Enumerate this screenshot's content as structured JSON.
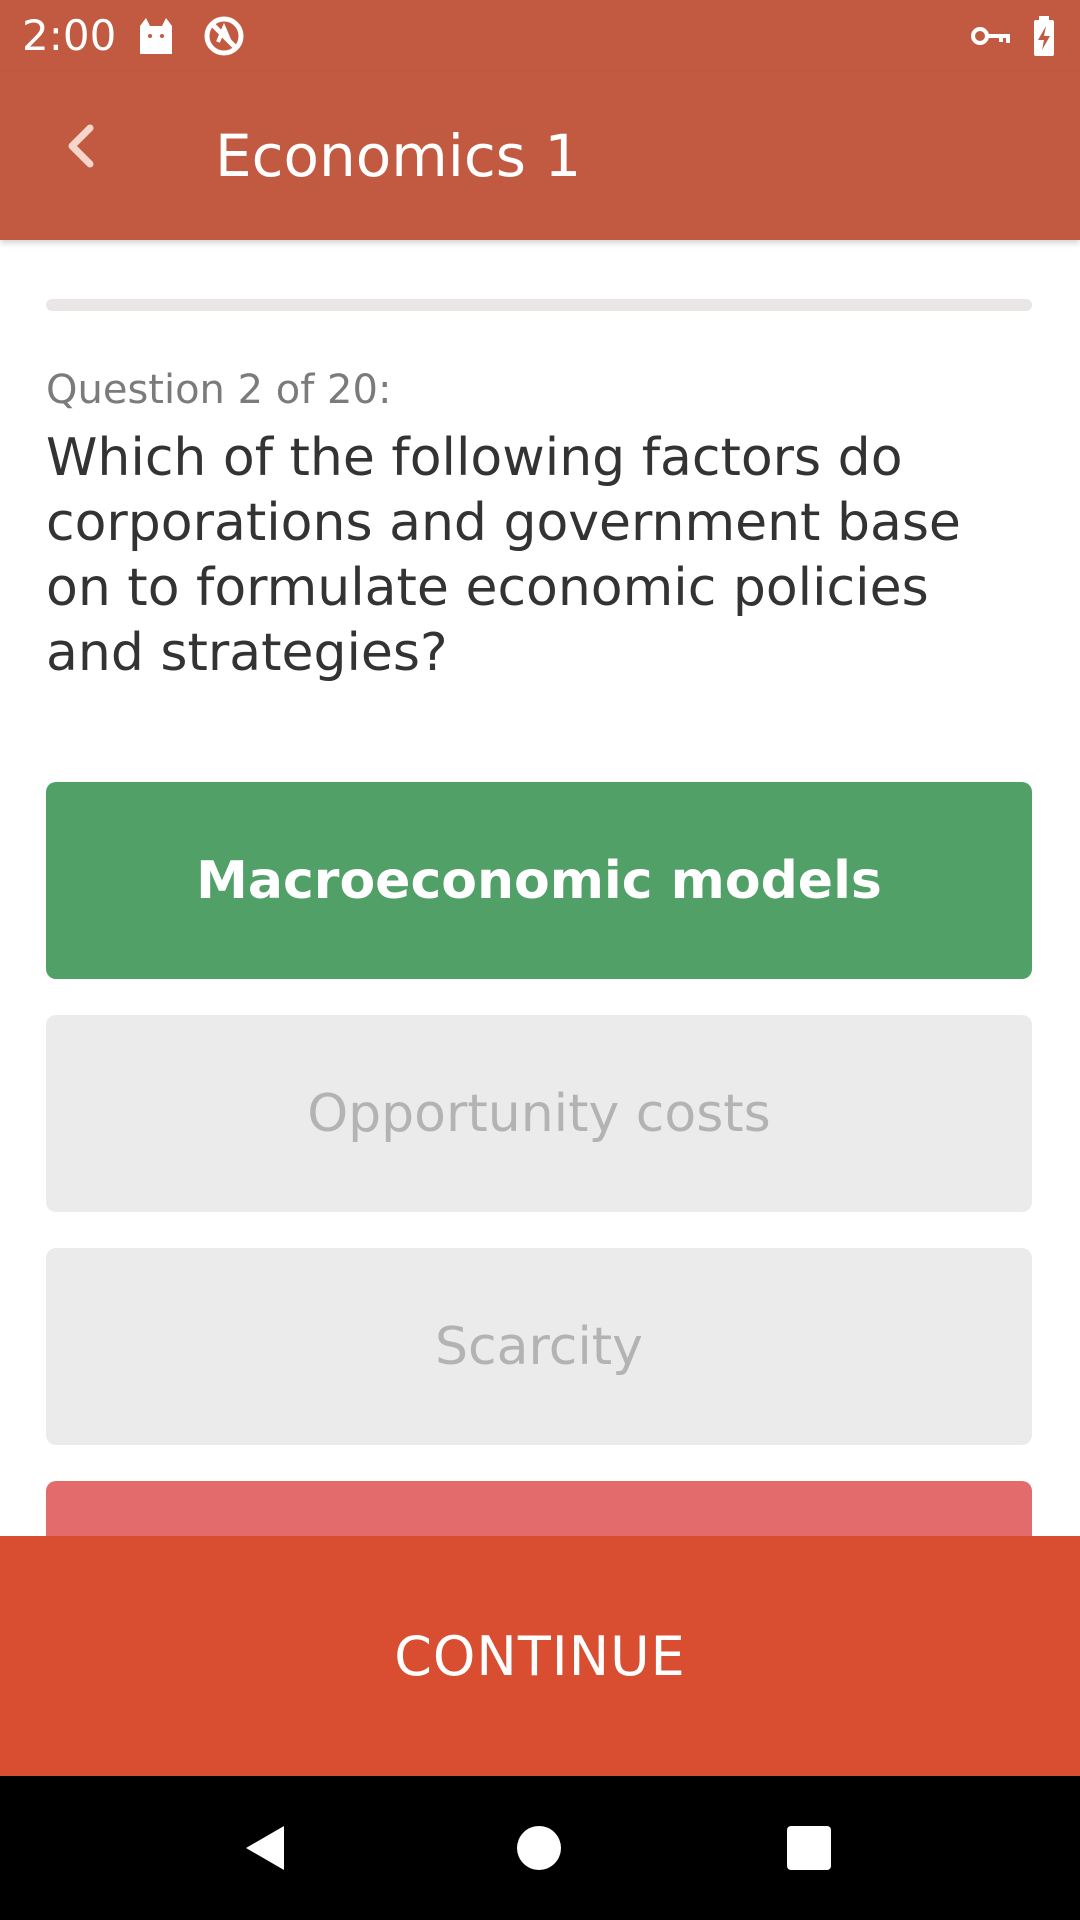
{
  "status_bar": {
    "time": "2:00",
    "icons": [
      "cat-notification-icon",
      "no-disturb-icon",
      "vpn-key-icon",
      "battery-charging-icon"
    ]
  },
  "app_bar": {
    "title": "Economics 1",
    "back_icon": "chevron-left-icon"
  },
  "progress": {
    "fraction": 0.0
  },
  "question": {
    "counter": "Question 2 of 20:",
    "text": "Which of the following factors do corporations and government base on to formulate economic policies and strategies?"
  },
  "answers": [
    {
      "label": "Macroeconomic models",
      "state": "correct"
    },
    {
      "label": "Opportunity costs",
      "state": "neutral"
    },
    {
      "label": "Scarcity",
      "state": "neutral"
    },
    {
      "label": "",
      "state": "wrong"
    }
  ],
  "continue_label": "CONTINUE",
  "nav_bar": {
    "icons": [
      "back-triangle-icon",
      "home-circle-icon",
      "recents-square-icon"
    ]
  },
  "colors": {
    "primary": "#c25a41",
    "correct": "#51a067",
    "wrong": "#e36b6c",
    "continue": "#d94e30",
    "neutral": "#ebebeb"
  }
}
